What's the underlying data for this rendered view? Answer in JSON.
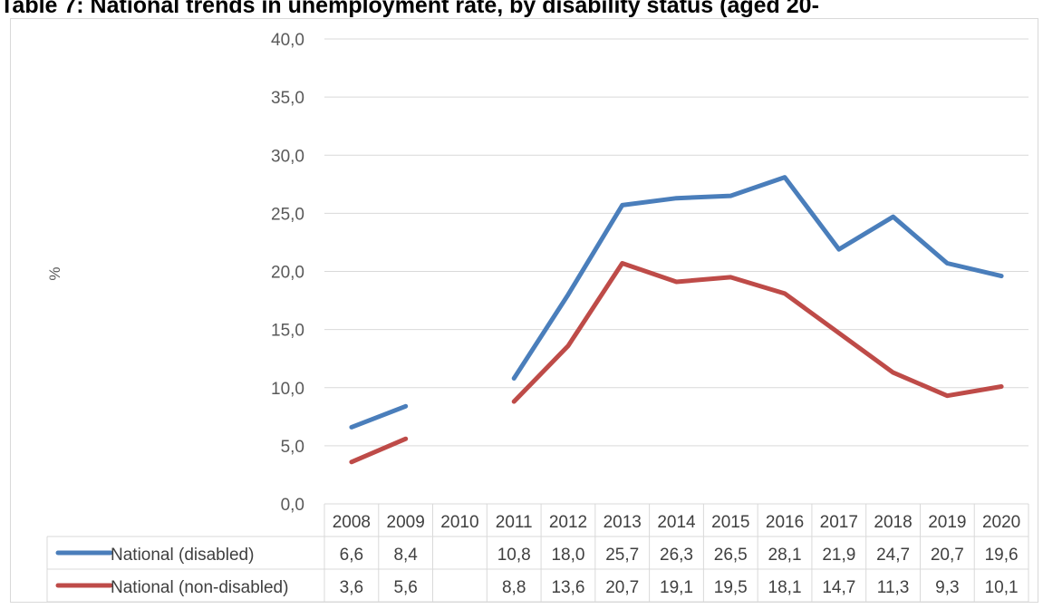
{
  "chart_data": {
    "type": "line",
    "title": "Table 7: National trends in unemployment rate, by disability status (aged 20-",
    "ylabel": "%",
    "xlabel": "",
    "ylim": [
      0,
      40
    ],
    "yticks": [
      "0,0",
      "5,0",
      "10,0",
      "15,0",
      "20,0",
      "25,0",
      "30,0",
      "35,0",
      "40,0"
    ],
    "categories": [
      "2008",
      "2009",
      "2010",
      "2011",
      "2012",
      "2013",
      "2014",
      "2015",
      "2016",
      "2017",
      "2018",
      "2019",
      "2020"
    ],
    "grid": true,
    "legend": "data-table",
    "series": [
      {
        "name": "National (disabled)",
        "color": "#4a7ebb",
        "values": [
          6.6,
          8.4,
          null,
          10.8,
          18.0,
          25.7,
          26.3,
          26.5,
          28.1,
          21.9,
          24.7,
          20.7,
          19.6
        ],
        "labels": [
          "6,6",
          "8,4",
          "",
          "10,8",
          "18,0",
          "25,7",
          "26,3",
          "26,5",
          "28,1",
          "21,9",
          "24,7",
          "20,7",
          "19,6"
        ]
      },
      {
        "name": "National (non-disabled)",
        "color": "#be4b48",
        "values": [
          3.6,
          5.6,
          null,
          8.8,
          13.6,
          20.7,
          19.1,
          19.5,
          18.1,
          14.7,
          11.3,
          9.3,
          10.1
        ],
        "labels": [
          "3,6",
          "5,6",
          "",
          "8,8",
          "13,6",
          "20,7",
          "19,1",
          "19,5",
          "18,1",
          "14,7",
          "11,3",
          "9,3",
          "10,1"
        ]
      }
    ]
  }
}
